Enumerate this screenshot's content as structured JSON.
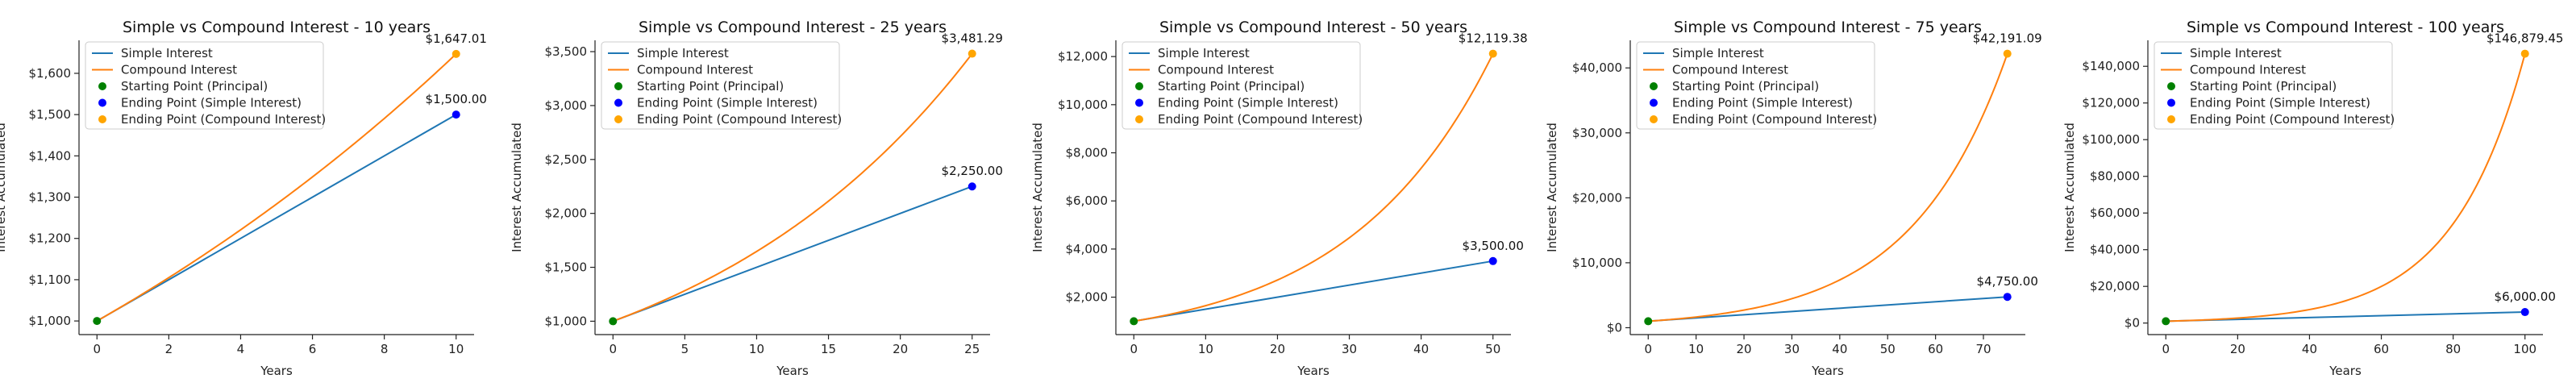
{
  "colors": {
    "simple": "#1f77b4",
    "compound": "#ff7f0e",
    "start_point": "#008000",
    "end_simple": "#0000ff",
    "end_compound": "#ffa500"
  },
  "legend_labels": [
    "Simple Interest",
    "Compound Interest",
    "Starting Point (Principal)",
    "Ending Point (Simple Interest)",
    "Ending Point (Compound Interest)"
  ],
  "chart_data": [
    {
      "type": "line",
      "title": "Simple vs Compound Interest - 10 years",
      "xlabel": "Years",
      "ylabel": "Interest Accumulated",
      "principal": 1000,
      "years": 10,
      "simple_end": 1500,
      "compound_end": 1647.01,
      "simple_end_label": "$1,500.00",
      "compound_end_label": "$1,647.01",
      "xlim": [
        -0.5,
        10.5
      ],
      "ylim": [
        967,
        1680
      ],
      "xticks": [
        0,
        2,
        4,
        6,
        8,
        10
      ],
      "xtick_labels": [
        "0",
        "2",
        "4",
        "6",
        "8",
        "10"
      ],
      "yticks": [
        1000,
        1100,
        1200,
        1300,
        1400,
        1500,
        1600
      ],
      "ytick_labels": [
        "$1,000",
        "$1,100",
        "$1,200",
        "$1,300",
        "$1,400",
        "$1,500",
        "$1,600"
      ],
      "legend": "top-left",
      "grid": false
    },
    {
      "type": "line",
      "title": "Simple vs Compound Interest - 25 years",
      "xlabel": "Years",
      "ylabel": "Interest Accumulated",
      "principal": 1000,
      "years": 25,
      "simple_end": 2250,
      "compound_end": 3481.29,
      "simple_end_label": "$2,250.00",
      "compound_end_label": "$3,481.29",
      "xlim": [
        -1.25,
        26.25
      ],
      "ylim": [
        876,
        3605
      ],
      "xticks": [
        0,
        5,
        10,
        15,
        20,
        25
      ],
      "xtick_labels": [
        "0",
        "5",
        "10",
        "15",
        "20",
        "25"
      ],
      "yticks": [
        1000,
        1500,
        2000,
        2500,
        3000,
        3500
      ],
      "ytick_labels": [
        "$1,000",
        "$1,500",
        "$2,000",
        "$2,500",
        "$3,000",
        "$3,500"
      ],
      "legend": "top-left",
      "grid": false
    },
    {
      "type": "line",
      "title": "Simple vs Compound Interest - 50 years",
      "xlabel": "Years",
      "ylabel": "Interest Accumulated",
      "principal": 1000,
      "years": 50,
      "simple_end": 3500,
      "compound_end": 12119.38,
      "simple_end_label": "$3,500.00",
      "compound_end_label": "$12,119.38",
      "xlim": [
        -2.5,
        52.5
      ],
      "ylim": [
        444,
        12675
      ],
      "xticks": [
        0,
        10,
        20,
        30,
        40,
        50
      ],
      "xtick_labels": [
        "0",
        "10",
        "20",
        "30",
        "40",
        "50"
      ],
      "yticks": [
        2000,
        4000,
        6000,
        8000,
        10000,
        12000
      ],
      "ytick_labels": [
        "$2,000",
        "$4,000",
        "$6,000",
        "$8,000",
        "$10,000",
        "$12,000"
      ],
      "legend": "top-left",
      "grid": false
    },
    {
      "type": "line",
      "title": "Simple vs Compound Interest - 75 years",
      "xlabel": "Years",
      "ylabel": "Interest Accumulated",
      "principal": 1000,
      "years": 75,
      "simple_end": 4750,
      "compound_end": 42191.09,
      "simple_end_label": "$4,750.00",
      "compound_end_label": "$42,191.09",
      "xlim": [
        -3.75,
        78.75
      ],
      "ylim": [
        -1060,
        44250
      ],
      "xticks": [
        0,
        10,
        20,
        30,
        40,
        50,
        60,
        70
      ],
      "xtick_labels": [
        "0",
        "10",
        "20",
        "30",
        "40",
        "50",
        "60",
        "70"
      ],
      "yticks": [
        0,
        10000,
        20000,
        30000,
        40000
      ],
      "ytick_labels": [
        "$0",
        "$10,000",
        "$20,000",
        "$30,000",
        "$40,000"
      ],
      "legend": "top-left",
      "grid": false
    },
    {
      "type": "line",
      "title": "Simple vs Compound Interest - 100 years",
      "xlabel": "Years",
      "ylabel": "Interest Accumulated",
      "principal": 1000,
      "years": 100,
      "simple_end": 6000,
      "compound_end": 146879.45,
      "simple_end_label": "$6,000.00",
      "compound_end_label": "$146,879.45",
      "xlim": [
        -5,
        105
      ],
      "ylim": [
        -6290,
        154170
      ],
      "xticks": [
        0,
        20,
        40,
        60,
        80,
        100
      ],
      "xtick_labels": [
        "0",
        "20",
        "40",
        "60",
        "80",
        "100"
      ],
      "yticks": [
        0,
        20000,
        40000,
        60000,
        80000,
        100000,
        120000,
        140000
      ],
      "ytick_labels": [
        "$0",
        "$20,000",
        "$40,000",
        "$60,000",
        "$80,000",
        "$100,000",
        "$120,000",
        "$140,000"
      ],
      "legend": "top-left",
      "grid": false
    }
  ]
}
